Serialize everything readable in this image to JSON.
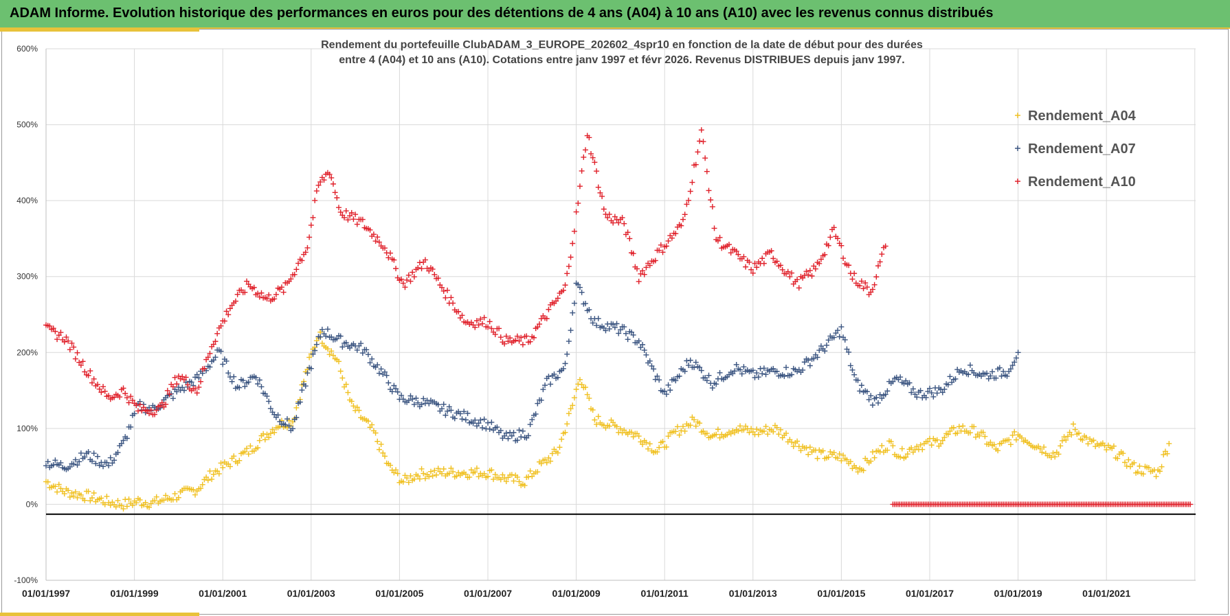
{
  "header": {
    "title": "ADAM Informe. Evolution historique des performances en euros pour des détentions de 4 ans (A04) à 10 ans (A10) avec les revenus connus distribués"
  },
  "chart_data": {
    "type": "scatter",
    "title_line1": "Rendement du portefeuille ClubADAM_3_EUROPE_202602_4spr10  en fonction de la date de début pour des durées",
    "title_line2": "entre 4 (A04) et 10 ans (A10). Cotations entre janv 1997 et févr 2026. Revenus DISTRIBUES depuis janv 1997.",
    "xlabel": "",
    "ylabel": "",
    "ylim": [
      -100,
      600
    ],
    "y_ticks": [
      "600%",
      "500%",
      "400%",
      "300%",
      "200%",
      "100%",
      "0%",
      "-100%"
    ],
    "y_tick_values": [
      600,
      500,
      400,
      300,
      200,
      100,
      0,
      -100
    ],
    "x_ticks": [
      "01/01/1997",
      "01/01/1999",
      "01/01/2001",
      "01/01/2003",
      "01/01/2005",
      "01/01/2007",
      "01/01/2009",
      "01/01/2011",
      "01/01/2013",
      "01/01/2015",
      "01/01/2017",
      "01/01/2019",
      "01/01/2021"
    ],
    "x_tick_years": [
      1997,
      1999,
      2001,
      2003,
      2005,
      2007,
      2009,
      2011,
      2013,
      2015,
      2017,
      2019,
      2021
    ],
    "xlim_years": [
      1997,
      2023
    ],
    "reference_line_value": -13,
    "legend_position": "top-right",
    "grid": true,
    "marker": "+",
    "series": [
      {
        "name": "Rendement_A04",
        "color": "#f0c020",
        "points": [
          [
            "1997-01",
            30
          ],
          [
            "1997-06",
            17
          ],
          [
            "1998-01",
            10
          ],
          [
            "1998-06",
            3
          ],
          [
            "1998-10",
            0
          ],
          [
            "1999-02",
            4
          ],
          [
            "1999-06",
            2
          ],
          [
            "2000-01",
            12
          ],
          [
            "2000-06",
            20
          ],
          [
            "2000-10",
            40
          ],
          [
            "2001-03",
            55
          ],
          [
            "2001-08",
            70
          ],
          [
            "2001-12",
            88
          ],
          [
            "2002-04",
            105
          ],
          [
            "2002-08",
            110
          ],
          [
            "2002-12",
            180
          ],
          [
            "2003-03",
            225
          ],
          [
            "2003-08",
            190
          ],
          [
            "2003-12",
            130
          ],
          [
            "2004-06",
            95
          ],
          [
            "2004-10",
            50
          ],
          [
            "2005-02",
            30
          ],
          [
            "2005-06",
            40
          ],
          [
            "2006-01",
            42
          ],
          [
            "2006-06",
            42
          ],
          [
            "2007-01",
            42
          ],
          [
            "2007-06",
            34
          ],
          [
            "2007-11",
            30
          ],
          [
            "2008-03",
            50
          ],
          [
            "2008-08",
            70
          ],
          [
            "2008-12",
            130
          ],
          [
            "2009-02",
            170
          ],
          [
            "2009-06",
            112
          ],
          [
            "2010-01",
            100
          ],
          [
            "2010-06",
            90
          ],
          [
            "2010-11",
            70
          ],
          [
            "2011-04",
            95
          ],
          [
            "2011-09",
            110
          ],
          [
            "2012-02",
            90
          ],
          [
            "2012-08",
            100
          ],
          [
            "2013-02",
            95
          ],
          [
            "2013-07",
            100
          ],
          [
            "2014-01",
            80
          ],
          [
            "2014-07",
            65
          ],
          [
            "2015-01",
            62
          ],
          [
            "2015-06",
            47
          ],
          [
            "2015-10",
            65
          ],
          [
            "2016-02",
            80
          ],
          [
            "2016-05",
            65
          ],
          [
            "2016-10",
            78
          ],
          [
            "2017-03",
            82
          ],
          [
            "2017-09",
            100
          ],
          [
            "2018-02",
            95
          ],
          [
            "2018-07",
            72
          ],
          [
            "2019-01",
            92
          ],
          [
            "2019-06",
            78
          ],
          [
            "2019-11",
            65
          ],
          [
            "2020-04",
            100
          ],
          [
            "2020-09",
            80
          ],
          [
            "2021-03",
            70
          ],
          [
            "2021-09",
            47
          ],
          [
            "2022-03",
            42
          ],
          [
            "2022-06",
            80
          ]
        ]
      },
      {
        "name": "Rendement_A07",
        "color": "#3a5480",
        "points": [
          [
            "1997-01",
            55
          ],
          [
            "1997-06",
            50
          ],
          [
            "1997-12",
            65
          ],
          [
            "1998-06",
            52
          ],
          [
            "1998-10",
            80
          ],
          [
            "1999-02",
            130
          ],
          [
            "1999-06",
            125
          ],
          [
            "2000-01",
            150
          ],
          [
            "2000-06",
            165
          ],
          [
            "2000-12",
            200
          ],
          [
            "2001-05",
            155
          ],
          [
            "2001-10",
            170
          ],
          [
            "2002-03",
            120
          ],
          [
            "2002-08",
            100
          ],
          [
            "2002-12",
            170
          ],
          [
            "2003-04",
            230
          ],
          [
            "2003-09",
            215
          ],
          [
            "2004-03",
            205
          ],
          [
            "2004-08",
            175
          ],
          [
            "2005-01",
            140
          ],
          [
            "2005-07",
            135
          ],
          [
            "2006-01",
            125
          ],
          [
            "2006-07",
            115
          ],
          [
            "2007-01",
            105
          ],
          [
            "2007-06",
            87
          ],
          [
            "2007-12",
            95
          ],
          [
            "2008-05",
            160
          ],
          [
            "2008-10",
            180
          ],
          [
            "2009-01",
            290
          ],
          [
            "2009-06",
            240
          ],
          [
            "2010-01",
            230
          ],
          [
            "2010-06",
            215
          ],
          [
            "2011-01",
            145
          ],
          [
            "2011-08",
            190
          ],
          [
            "2012-02",
            160
          ],
          [
            "2012-08",
            180
          ],
          [
            "2013-01",
            170
          ],
          [
            "2013-06",
            175
          ],
          [
            "2014-01",
            175
          ],
          [
            "2014-07",
            200
          ],
          [
            "2015-01",
            230
          ],
          [
            "2015-05",
            160
          ],
          [
            "2015-10",
            135
          ],
          [
            "2016-04",
            165
          ],
          [
            "2016-10",
            145
          ],
          [
            "2017-04",
            150
          ],
          [
            "2017-10",
            180
          ],
          [
            "2018-04",
            170
          ],
          [
            "2018-10",
            175
          ],
          [
            "2019-01",
            200
          ]
        ]
      },
      {
        "name": "Rendement_A10",
        "color": "#e0202a",
        "points": [
          [
            "1997-01",
            230
          ],
          [
            "1997-06",
            220
          ],
          [
            "1998-01",
            170
          ],
          [
            "1998-06",
            140
          ],
          [
            "1998-10",
            150
          ],
          [
            "1999-02",
            125
          ],
          [
            "1999-08",
            125
          ],
          [
            "2000-01",
            170
          ],
          [
            "2000-06",
            150
          ],
          [
            "2000-10",
            210
          ],
          [
            "2001-03",
            260
          ],
          [
            "2001-08",
            290
          ],
          [
            "2002-01",
            270
          ],
          [
            "2002-06",
            285
          ],
          [
            "2002-12",
            340
          ],
          [
            "2003-03",
            420
          ],
          [
            "2003-06",
            440
          ],
          [
            "2003-09",
            385
          ],
          [
            "2004-03",
            370
          ],
          [
            "2004-09",
            340
          ],
          [
            "2005-02",
            290
          ],
          [
            "2005-08",
            320
          ],
          [
            "2006-02",
            275
          ],
          [
            "2006-07",
            240
          ],
          [
            "2007-01",
            240
          ],
          [
            "2007-06",
            215
          ],
          [
            "2007-12",
            215
          ],
          [
            "2008-05",
            250
          ],
          [
            "2008-10",
            285
          ],
          [
            "2009-01",
            380
          ],
          [
            "2009-04",
            490
          ],
          [
            "2009-09",
            380
          ],
          [
            "2010-02",
            370
          ],
          [
            "2010-06",
            300
          ],
          [
            "2010-11",
            330
          ],
          [
            "2011-06",
            370
          ],
          [
            "2011-11",
            490
          ],
          [
            "2012-03",
            350
          ],
          [
            "2012-08",
            330
          ],
          [
            "2013-01",
            310
          ],
          [
            "2013-06",
            330
          ],
          [
            "2014-01",
            290
          ],
          [
            "2014-06",
            310
          ],
          [
            "2014-11",
            360
          ],
          [
            "2015-04",
            300
          ],
          [
            "2015-09",
            280
          ],
          [
            "2016-01",
            340
          ]
        ]
      }
    ],
    "zero_run": {
      "series": "Rendement_A10",
      "value": 0,
      "from": "2016-03",
      "to": "2022-12"
    }
  }
}
